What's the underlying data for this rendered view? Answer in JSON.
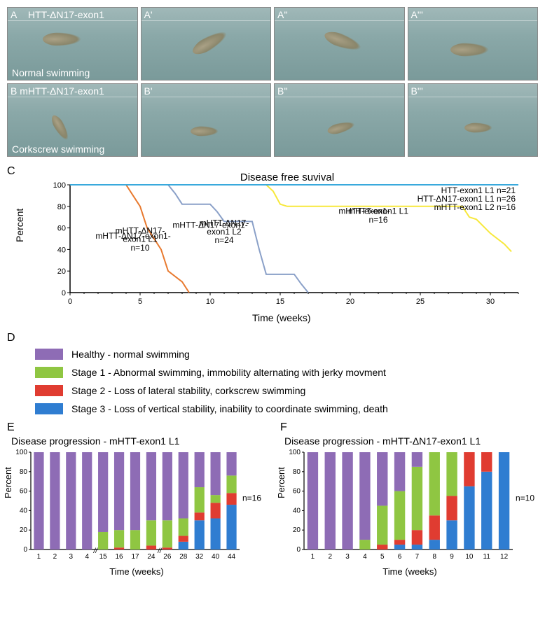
{
  "colors": {
    "healthy": "#8e6cb5",
    "stage1": "#8fc642",
    "stage2": "#e03c31",
    "stage3": "#2f7dd1",
    "line_L1": "#e8792e",
    "line_L2": "#8aa0c8",
    "line_yellow": "#f7e83b",
    "line_blue": "#39a9dc",
    "panel_bg_top": "#a0b8b8"
  },
  "panels": {
    "rowA": {
      "labels": [
        "A",
        "A'",
        "A''",
        "A'''"
      ],
      "construct": "HTT-ΔN17-exon1",
      "caption": "Normal swimming"
    },
    "rowB": {
      "labels": [
        "B",
        "B'",
        "B''",
        "B'''"
      ],
      "construct": "mHTT-ΔN17-exon1",
      "caption": "Corkscrew swimming"
    }
  },
  "chartC": {
    "letter": "C",
    "title": "Disease free suvival",
    "ylabel": "Percent",
    "xlabel": "Time (weeks)",
    "xlim": [
      0,
      32
    ],
    "ylim": [
      0,
      100
    ],
    "ytick_step": 20,
    "xtick_step": 5,
    "series": [
      {
        "name": "mHTT-ΔN17-exon1 L1",
        "n": 10,
        "color": "#e8792e",
        "points": [
          [
            0,
            100
          ],
          [
            4,
            100
          ],
          [
            4.5,
            90
          ],
          [
            5,
            80
          ],
          [
            5.5,
            60
          ],
          [
            6,
            50
          ],
          [
            6.5,
            40
          ],
          [
            7,
            20
          ],
          [
            8,
            10
          ],
          [
            8.5,
            0
          ]
        ],
        "label_xy": [
          4.5,
          50
        ]
      },
      {
        "name": "mHTT-ΔN17-exon1 L2",
        "n": 24,
        "color": "#8aa0c8",
        "points": [
          [
            0,
            100
          ],
          [
            7,
            100
          ],
          [
            7.5,
            92
          ],
          [
            8,
            82
          ],
          [
            10,
            82
          ],
          [
            10.5,
            75
          ],
          [
            11,
            66
          ],
          [
            13,
            66
          ],
          [
            13.5,
            40
          ],
          [
            14,
            17
          ],
          [
            16,
            17
          ],
          [
            16.5,
            8
          ],
          [
            17,
            0
          ]
        ],
        "label_xy": [
          10,
          60
        ]
      },
      {
        "name": "mHTT-exon1 L1",
        "n": 16,
        "color": "#f7e83b",
        "points": [
          [
            0,
            100
          ],
          [
            14,
            100
          ],
          [
            14.5,
            94
          ],
          [
            15,
            82
          ],
          [
            15.5,
            80
          ],
          [
            28,
            80
          ],
          [
            28.5,
            70
          ],
          [
            29,
            68
          ],
          [
            30,
            55
          ],
          [
            31,
            45
          ],
          [
            31.5,
            38
          ]
        ],
        "label_xy": [
          21,
          73
        ]
      },
      {
        "name": "top",
        "color": "#39a9dc",
        "points": [
          [
            0,
            100
          ],
          [
            32,
            100
          ]
        ]
      }
    ],
    "right_labels": [
      "HTT-exon1 L1 n=21",
      "HTT-ΔN17-exon1 L1 n=26",
      "mHTT-exon1 L2 n=16"
    ]
  },
  "legendD": {
    "letter": "D",
    "items": [
      {
        "color": "#8e6cb5",
        "text": "Healthy - normal swimming"
      },
      {
        "color": "#8fc642",
        "text": "Stage 1 - Abnormal swimming, immobility alternating with jerky movment"
      },
      {
        "color": "#e03c31",
        "text": "Stage 2 - Loss of lateral stability, corkscrew swimming"
      },
      {
        "color": "#2f7dd1",
        "text": "Stage 3 - Loss of vertical stability, inability to coordinate swimming, death"
      }
    ]
  },
  "chartE": {
    "letter": "E",
    "title": "Disease progression - mHTT-exon1 L1",
    "n": 16,
    "xlabel": "Time (weeks)",
    "ylabel": "Percent",
    "xlabels": [
      "1",
      "2",
      "3",
      "4",
      "15",
      "16",
      "17",
      "24",
      "26",
      "28",
      "32",
      "40",
      "44"
    ],
    "breaks_after": [
      3,
      7
    ],
    "bars": [
      {
        "h": 100,
        "s1": 0,
        "s2": 0,
        "s3": 0
      },
      {
        "h": 100,
        "s1": 0,
        "s2": 0,
        "s3": 0
      },
      {
        "h": 100,
        "s1": 0,
        "s2": 0,
        "s3": 0
      },
      {
        "h": 100,
        "s1": 0,
        "s2": 0,
        "s3": 0
      },
      {
        "h": 82,
        "s1": 18,
        "s2": 0,
        "s3": 0
      },
      {
        "h": 80,
        "s1": 18,
        "s2": 2,
        "s3": 0
      },
      {
        "h": 80,
        "s1": 20,
        "s2": 0,
        "s3": 0
      },
      {
        "h": 70,
        "s1": 26,
        "s2": 4,
        "s3": 0
      },
      {
        "h": 70,
        "s1": 28,
        "s2": 2,
        "s3": 0
      },
      {
        "h": 68,
        "s1": 18,
        "s2": 6,
        "s3": 8
      },
      {
        "h": 36,
        "s1": 26,
        "s2": 8,
        "s3": 30
      },
      {
        "h": 44,
        "s1": 8,
        "s2": 16,
        "s3": 32
      },
      {
        "h": 24,
        "s1": 18,
        "s2": 12,
        "s3": 46
      }
    ]
  },
  "chartF": {
    "letter": "F",
    "title": "Disease progression - mHTT-ΔN17-exon1 L1",
    "n": 10,
    "xlabel": "Time (weeks)",
    "ylabel": "Percent",
    "xlabels": [
      "1",
      "2",
      "3",
      "4",
      "5",
      "6",
      "7",
      "8",
      "9",
      "10",
      "11",
      "12"
    ],
    "bars": [
      {
        "h": 100,
        "s1": 0,
        "s2": 0,
        "s3": 0
      },
      {
        "h": 100,
        "s1": 0,
        "s2": 0,
        "s3": 0
      },
      {
        "h": 100,
        "s1": 0,
        "s2": 0,
        "s3": 0
      },
      {
        "h": 90,
        "s1": 10,
        "s2": 0,
        "s3": 0
      },
      {
        "h": 55,
        "s1": 40,
        "s2": 5,
        "s3": 0
      },
      {
        "h": 40,
        "s1": 50,
        "s2": 5,
        "s3": 5
      },
      {
        "h": 15,
        "s1": 65,
        "s2": 15,
        "s3": 5
      },
      {
        "h": 0,
        "s1": 65,
        "s2": 25,
        "s3": 10
      },
      {
        "h": 0,
        "s1": 45,
        "s2": 25,
        "s3": 30
      },
      {
        "h": 0,
        "s1": 0,
        "s2": 35,
        "s3": 65
      },
      {
        "h": 0,
        "s1": 0,
        "s2": 20,
        "s3": 80
      },
      {
        "h": 0,
        "s1": 0,
        "s2": 0,
        "s3": 100
      }
    ]
  }
}
